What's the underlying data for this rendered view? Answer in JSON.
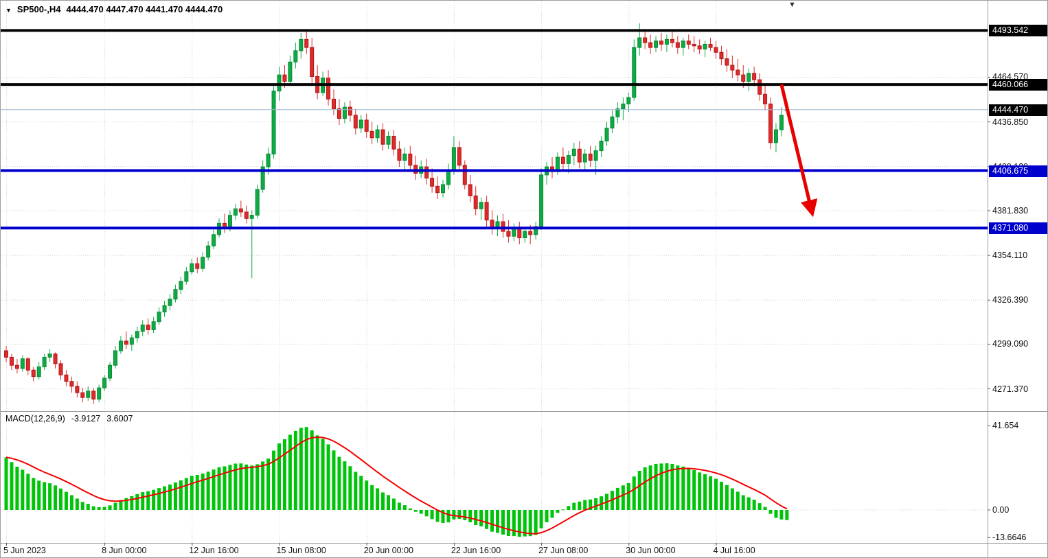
{
  "icons": {
    "symbol_dropdown": "▼",
    "shift_marker": "▼"
  },
  "symbol_bar": {
    "symbol": "SP500-,H4",
    "ohlc": "4444.470 4447.470 4441.470 4444.470"
  },
  "macd": {
    "title": "MACD(12,26,9)",
    "main_value": "-3.9127",
    "signal_value": "3.6007",
    "ticks": [
      "41.654",
      "0.00",
      "-13.6646"
    ],
    "histogram_color": "#00c40a",
    "signal_color": "#f50000",
    "seed": {
      "ema12": 4291,
      "ema26": 4263,
      "signal": 26
    }
  },
  "chart_data": {
    "type": "candlestick",
    "title": "SP500-,H4",
    "symbol": "SP500-",
    "timeframe": "H4",
    "current_bar": {
      "open": "4444.470",
      "high": "4447.470",
      "low": "4441.470",
      "close": "4444.470"
    },
    "ylim": [
      4258,
      4512
    ],
    "y_ticks": [
      "4464.570",
      "4436.850",
      "4409.120",
      "4381.830",
      "4354.110",
      "4326.390",
      "4299.090",
      "4271.370"
    ],
    "x_labels": [
      {
        "label": "5 Jun 2023",
        "bar": 0
      },
      {
        "label": "8 Jun 00:00",
        "bar": 18
      },
      {
        "label": "12 Jun 16:00",
        "bar": 34
      },
      {
        "label": "15 Jun 08:00",
        "bar": 50
      },
      {
        "label": "20 Jun 00:00",
        "bar": 66
      },
      {
        "label": "22 Jun 16:00",
        "bar": 82
      },
      {
        "label": "27 Jun 08:00",
        "bar": 98
      },
      {
        "label": "30 Jun 00:00",
        "bar": 114
      },
      {
        "label": "4 Jul 16:00",
        "bar": 130
      }
    ],
    "h_lines": [
      {
        "name": "resistance-line-upper",
        "label": "4493.542",
        "price": 4493.542,
        "color": "#050505",
        "width": 4,
        "label_bg": "#000000"
      },
      {
        "name": "resistance-line-mid",
        "label": "4460.066",
        "price": 4460.066,
        "color": "#050505",
        "width": 4,
        "label_bg": "#000000"
      },
      {
        "name": "current-price-line",
        "label": "4444.470",
        "price": 4444.47,
        "color": "#9fb8d0",
        "width": 1,
        "label_bg": "#000000"
      },
      {
        "name": "support-line-upper",
        "label": "4406.675",
        "price": 4406.675,
        "color": "#0000cd",
        "width": 4,
        "label_bg": "#0000cd"
      },
      {
        "name": "support-line-lower",
        "label": "4371.080",
        "price": 4371.08,
        "color": "#0000cd",
        "width": 4,
        "label_bg": "#0000cd"
      }
    ],
    "arrow": {
      "from_bar": 142,
      "from_price": 4460,
      "to_bar": 147.5,
      "to_price": 4382,
      "color": "#e80000"
    },
    "colors": {
      "up": "#0cab45",
      "up_border": "#088a34",
      "down": "#df2a2a",
      "down_border": "#b01818"
    },
    "candles": [
      [
        4295,
        4298,
        4288,
        4291
      ],
      [
        4291,
        4293,
        4283,
        4286
      ],
      [
        4286,
        4290,
        4281,
        4284
      ],
      [
        4284,
        4292,
        4282,
        4290
      ],
      [
        4290,
        4291,
        4280,
        4283
      ],
      [
        4283,
        4285,
        4276,
        4279
      ],
      [
        4279,
        4288,
        4277,
        4285
      ],
      [
        4285,
        4293,
        4283,
        4291
      ],
      [
        4291,
        4296,
        4288,
        4293
      ],
      [
        4293,
        4294,
        4284,
        4287
      ],
      [
        4287,
        4289,
        4277,
        4280
      ],
      [
        4280,
        4283,
        4273,
        4276
      ],
      [
        4276,
        4279,
        4269,
        4273
      ],
      [
        4273,
        4276,
        4266,
        4269
      ],
      [
        4269,
        4272,
        4263,
        4266
      ],
      [
        4266,
        4273,
        4264,
        4270
      ],
      [
        4270,
        4272,
        4262,
        4265
      ],
      [
        4265,
        4274,
        4263,
        4272
      ],
      [
        4272,
        4280,
        4270,
        4278
      ],
      [
        4278,
        4288,
        4276,
        4286
      ],
      [
        4286,
        4298,
        4284,
        4295
      ],
      [
        4295,
        4304,
        4293,
        4301
      ],
      [
        4301,
        4307,
        4296,
        4299
      ],
      [
        4299,
        4305,
        4295,
        4303
      ],
      [
        4303,
        4310,
        4300,
        4307
      ],
      [
        4307,
        4314,
        4304,
        4311
      ],
      [
        4311,
        4315,
        4305,
        4308
      ],
      [
        4308,
        4316,
        4306,
        4313
      ],
      [
        4313,
        4322,
        4311,
        4319
      ],
      [
        4319,
        4326,
        4316,
        4323
      ],
      [
        4323,
        4330,
        4320,
        4327
      ],
      [
        4327,
        4336,
        4325,
        4333
      ],
      [
        4333,
        4341,
        4330,
        4338
      ],
      [
        4338,
        4347,
        4336,
        4344
      ],
      [
        4344,
        4352,
        4342,
        4349
      ],
      [
        4349,
        4353,
        4343,
        4346
      ],
      [
        4346,
        4356,
        4344,
        4353
      ],
      [
        4353,
        4363,
        4351,
        4360
      ],
      [
        4360,
        4370,
        4358,
        4367
      ],
      [
        4367,
        4377,
        4365,
        4374
      ],
      [
        4374,
        4380,
        4368,
        4371
      ],
      [
        4371,
        4382,
        4369,
        4379
      ],
      [
        4379,
        4386,
        4376,
        4383
      ],
      [
        4383,
        4388,
        4378,
        4381
      ],
      [
        4381,
        4385,
        4374,
        4377
      ],
      [
        4377,
        4382,
        4340,
        4379
      ],
      [
        4379,
        4398,
        4377,
        4395
      ],
      [
        4395,
        4413,
        4393,
        4409
      ],
      [
        4409,
        4421,
        4404,
        4417
      ],
      [
        4417,
        4460,
        4414,
        4456
      ],
      [
        4456,
        4471,
        4450,
        4466
      ],
      [
        4466,
        4472,
        4458,
        4462
      ],
      [
        4462,
        4478,
        4459,
        4474
      ],
      [
        4474,
        4486,
        4470,
        4481
      ],
      [
        4481,
        4492,
        4476,
        4488
      ],
      [
        4488,
        4494,
        4479,
        4483
      ],
      [
        4483,
        4489,
        4461,
        4465
      ],
      [
        4465,
        4472,
        4451,
        4455
      ],
      [
        4455,
        4468,
        4453,
        4464
      ],
      [
        4464,
        4469,
        4447,
        4451
      ],
      [
        4451,
        4457,
        4441,
        4445
      ],
      [
        4445,
        4451,
        4435,
        4439
      ],
      [
        4439,
        4449,
        4436,
        4446
      ],
      [
        4446,
        4450,
        4437,
        4441
      ],
      [
        4441,
        4445,
        4429,
        4433
      ],
      [
        4433,
        4441,
        4430,
        4438
      ],
      [
        4438,
        4442,
        4427,
        4431
      ],
      [
        4431,
        4437,
        4423,
        4427
      ],
      [
        4427,
        4435,
        4424,
        4432
      ],
      [
        4432,
        4436,
        4419,
        4423
      ],
      [
        4423,
        4431,
        4420,
        4428
      ],
      [
        4428,
        4432,
        4416,
        4420
      ],
      [
        4420,
        4425,
        4409,
        4413
      ],
      [
        4413,
        4421,
        4407,
        4417
      ],
      [
        4417,
        4422,
        4406,
        4410
      ],
      [
        4410,
        4416,
        4401,
        4405
      ],
      [
        4405,
        4413,
        4402,
        4409
      ],
      [
        4409,
        4414,
        4398,
        4402
      ],
      [
        4402,
        4408,
        4393,
        4397
      ],
      [
        4397,
        4403,
        4389,
        4393
      ],
      [
        4393,
        4401,
        4390,
        4398
      ],
      [
        4398,
        4411,
        4395,
        4407
      ],
      [
        4407,
        4428,
        4404,
        4421
      ],
      [
        4421,
        4425,
        4406,
        4410
      ],
      [
        4410,
        4413,
        4395,
        4398
      ],
      [
        4398,
        4404,
        4387,
        4391
      ],
      [
        4391,
        4397,
        4379,
        4383
      ],
      [
        4383,
        4390,
        4376,
        4387
      ],
      [
        4387,
        4391,
        4372,
        4376
      ],
      [
        4376,
        4382,
        4367,
        4371
      ],
      [
        4371,
        4379,
        4366,
        4375
      ],
      [
        4375,
        4380,
        4365,
        4369
      ],
      [
        4369,
        4376,
        4362,
        4366
      ],
      [
        4366,
        4374,
        4363,
        4371
      ],
      [
        4371,
        4375,
        4361,
        4365
      ],
      [
        4365,
        4372,
        4362,
        4369
      ],
      [
        4369,
        4373,
        4361,
        4367
      ],
      [
        4367,
        4375,
        4364,
        4372
      ],
      [
        4372,
        4408,
        4370,
        4404
      ],
      [
        4404,
        4412,
        4398,
        4409
      ],
      [
        4409,
        4415,
        4402,
        4406
      ],
      [
        4406,
        4418,
        4404,
        4415
      ],
      [
        4415,
        4421,
        4407,
        4411
      ],
      [
        4411,
        4419,
        4405,
        4416
      ],
      [
        4416,
        4424,
        4410,
        4420
      ],
      [
        4420,
        4425,
        4408,
        4412
      ],
      [
        4412,
        4420,
        4406,
        4417
      ],
      [
        4417,
        4422,
        4409,
        4413
      ],
      [
        4413,
        4422,
        4404,
        4419
      ],
      [
        4419,
        4428,
        4415,
        4425
      ],
      [
        4425,
        4437,
        4422,
        4433
      ],
      [
        4433,
        4444,
        4430,
        4440
      ],
      [
        4440,
        4449,
        4436,
        4445
      ],
      [
        4445,
        4452,
        4438,
        4448
      ],
      [
        4448,
        4455,
        4443,
        4452
      ],
      [
        4452,
        4488,
        4450,
        4483
      ],
      [
        4483,
        4498,
        4478,
        4489
      ],
      [
        4489,
        4494,
        4482,
        4486
      ],
      [
        4486,
        4491,
        4479,
        4483
      ],
      [
        4483,
        4490,
        4480,
        4487
      ],
      [
        4487,
        4492,
        4481,
        4485
      ],
      [
        4485,
        4491,
        4480,
        4488
      ],
      [
        4488,
        4493,
        4483,
        4486
      ],
      [
        4486,
        4490,
        4479,
        4483
      ],
      [
        4483,
        4489,
        4478,
        4487
      ],
      [
        4487,
        4491,
        4482,
        4485
      ],
      [
        4485,
        4490,
        4480,
        4484
      ],
      [
        4484,
        4488,
        4479,
        4482
      ],
      [
        4482,
        4487,
        4477,
        4485
      ],
      [
        4485,
        4489,
        4481,
        4483
      ],
      [
        4483,
        4487,
        4476,
        4480
      ],
      [
        4480,
        4484,
        4472,
        4476
      ],
      [
        4476,
        4482,
        4468,
        4472
      ],
      [
        4472,
        4478,
        4464,
        4469
      ],
      [
        4469,
        4476,
        4462,
        4466
      ],
      [
        4466,
        4472,
        4458,
        4462
      ],
      [
        4462,
        4470,
        4456,
        4467
      ],
      [
        4467,
        4471,
        4459,
        4463
      ],
      [
        4463,
        4467,
        4450,
        4454
      ],
      [
        4454,
        4460,
        4444,
        4448
      ],
      [
        4448,
        4452,
        4420,
        4424
      ],
      [
        4424,
        4436,
        4418,
        4432
      ],
      [
        4432,
        4446,
        4428,
        4441
      ],
      [
        4444.47,
        4447.47,
        4441.47,
        4444.47
      ]
    ]
  }
}
